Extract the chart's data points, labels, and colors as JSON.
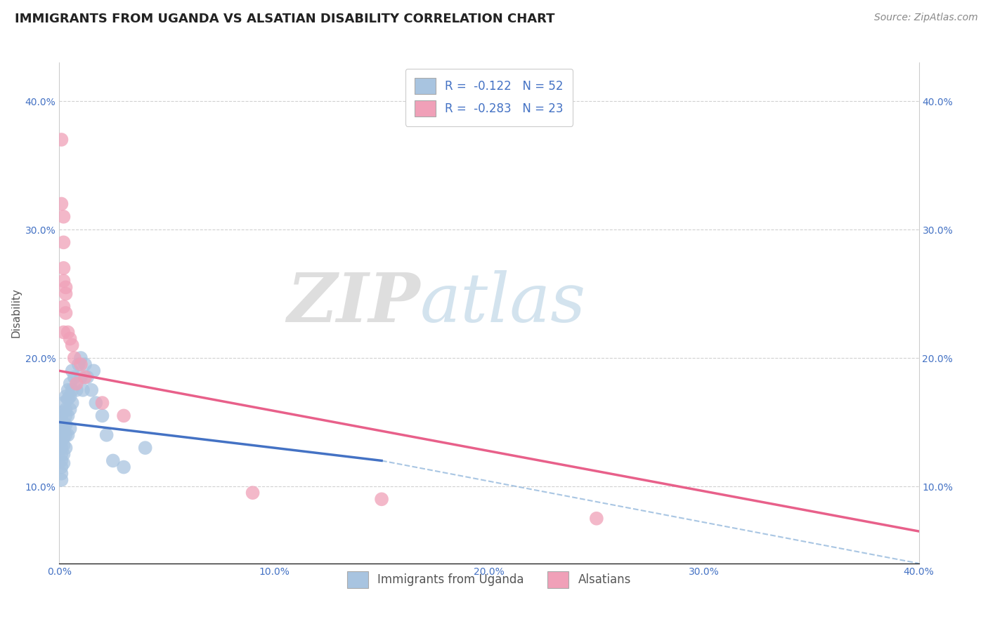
{
  "title": "IMMIGRANTS FROM UGANDA VS ALSATIAN DISABILITY CORRELATION CHART",
  "source_text": "Source: ZipAtlas.com",
  "xlabel": "",
  "ylabel": "Disability",
  "watermark_zip": "ZIP",
  "watermark_atlas": "atlas",
  "xlim": [
    0.0,
    0.4
  ],
  "ylim": [
    0.04,
    0.43
  ],
  "xticks": [
    0.0,
    0.1,
    0.2,
    0.3,
    0.4
  ],
  "xtick_labels": [
    "0.0%",
    "10.0%",
    "20.0%",
    "30.0%",
    "40.0%"
  ],
  "yticks": [
    0.1,
    0.2,
    0.3,
    0.4
  ],
  "ytick_labels": [
    "10.0%",
    "20.0%",
    "30.0%",
    "40.0%"
  ],
  "blue_color": "#a8c4e0",
  "pink_color": "#f0a0b8",
  "blue_line_color": "#4472c4",
  "pink_line_color": "#e8608a",
  "dashed_line_color": "#a0c0e0",
  "legend_blue_label": "R =  -0.122   N = 52",
  "legend_pink_label": "R =  -0.283   N = 23",
  "legend_blue_face": "#a8c4e0",
  "legend_pink_face": "#f0a0b8",
  "bottom_legend_blue": "Immigrants from Uganda",
  "bottom_legend_pink": "Alsatians",
  "blue_scatter_x": [
    0.001,
    0.001,
    0.001,
    0.001,
    0.001,
    0.001,
    0.001,
    0.001,
    0.001,
    0.001,
    0.001,
    0.002,
    0.002,
    0.002,
    0.002,
    0.002,
    0.002,
    0.002,
    0.002,
    0.003,
    0.003,
    0.003,
    0.003,
    0.003,
    0.003,
    0.004,
    0.004,
    0.004,
    0.004,
    0.005,
    0.005,
    0.005,
    0.005,
    0.006,
    0.006,
    0.006,
    0.007,
    0.008,
    0.009,
    0.01,
    0.01,
    0.011,
    0.012,
    0.013,
    0.015,
    0.016,
    0.017,
    0.02,
    0.022,
    0.025,
    0.03,
    0.04
  ],
  "blue_scatter_y": [
    0.155,
    0.15,
    0.145,
    0.14,
    0.135,
    0.13,
    0.125,
    0.12,
    0.115,
    0.11,
    0.105,
    0.165,
    0.158,
    0.148,
    0.143,
    0.138,
    0.132,
    0.125,
    0.118,
    0.17,
    0.16,
    0.155,
    0.148,
    0.14,
    0.13,
    0.175,
    0.168,
    0.155,
    0.14,
    0.18,
    0.17,
    0.16,
    0.145,
    0.19,
    0.175,
    0.165,
    0.185,
    0.175,
    0.195,
    0.2,
    0.185,
    0.175,
    0.195,
    0.185,
    0.175,
    0.19,
    0.165,
    0.155,
    0.14,
    0.12,
    0.115,
    0.13
  ],
  "pink_scatter_x": [
    0.001,
    0.001,
    0.002,
    0.002,
    0.002,
    0.002,
    0.002,
    0.002,
    0.003,
    0.003,
    0.003,
    0.004,
    0.005,
    0.006,
    0.007,
    0.008,
    0.01,
    0.012,
    0.02,
    0.03,
    0.09,
    0.15,
    0.25
  ],
  "pink_scatter_y": [
    0.37,
    0.32,
    0.31,
    0.29,
    0.27,
    0.26,
    0.24,
    0.22,
    0.255,
    0.25,
    0.235,
    0.22,
    0.215,
    0.21,
    0.2,
    0.18,
    0.195,
    0.185,
    0.165,
    0.155,
    0.095,
    0.09,
    0.075
  ],
  "blue_trend_x": [
    0.0,
    0.15
  ],
  "blue_trend_y": [
    0.15,
    0.12
  ],
  "pink_trend_x": [
    0.0,
    0.4
  ],
  "pink_trend_y": [
    0.19,
    0.065
  ],
  "dashed_trend_x": [
    0.15,
    0.4
  ],
  "dashed_trend_y": [
    0.12,
    0.04
  ],
  "title_fontsize": 13,
  "axis_label_fontsize": 11,
  "tick_fontsize": 10,
  "source_fontsize": 10
}
